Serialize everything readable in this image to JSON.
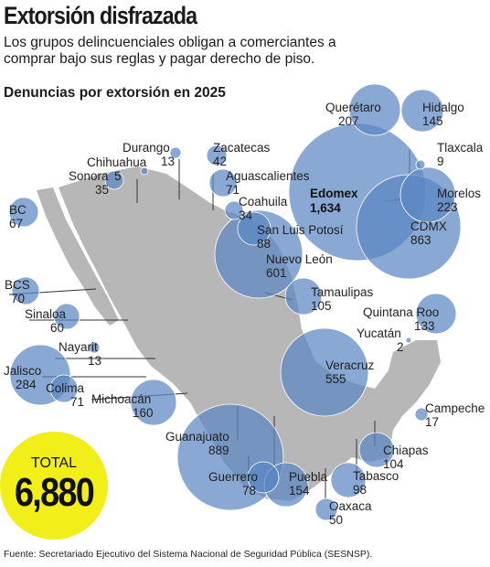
{
  "header": {
    "title": "Extorsión disfrazada",
    "subtitle": "Los grupos delincuenciales obligan a comerciantes a comprar bajo sus reglas y pagar derecho de piso.",
    "section": "Denuncias por extorsión en 2025"
  },
  "total": {
    "label": "TOTAL",
    "value": "6,880"
  },
  "source": "Fuente: Secretariado Ejecutivo del Sistema Nacional de Seguridad Pública (SESNSP).",
  "colors": {
    "bubble": "#5b86c4",
    "total": "#f2ee1a",
    "land": "#b7b7b7"
  },
  "states": [
    {
      "name": "Querétaro",
      "value": "207",
      "bold": false
    },
    {
      "name": "Hidalgo",
      "value": "145",
      "bold": false
    },
    {
      "name": "Durango",
      "value": "13",
      "bold": false
    },
    {
      "name": "Zacatecas",
      "value": "42",
      "bold": false
    },
    {
      "name": "Tlaxcala",
      "value": "9",
      "bold": false
    },
    {
      "name": "Chihuahua",
      "value": "5",
      "bold": false
    },
    {
      "name": "Sonora",
      "value": "35",
      "bold": false
    },
    {
      "name": "Aguascalientes",
      "value": "71",
      "bold": false
    },
    {
      "name": "Edomex",
      "value": "1,634",
      "bold": true
    },
    {
      "name": "Morelos",
      "value": "223",
      "bold": false
    },
    {
      "name": "Coahuila",
      "value": "34",
      "bold": false
    },
    {
      "name": "CDMX",
      "value": "863",
      "bold": false
    },
    {
      "name": "BC",
      "value": "67",
      "bold": false
    },
    {
      "name": "San Luis Potosí",
      "value": "88",
      "bold": false
    },
    {
      "name": "Nuevo León",
      "value": "601",
      "bold": false
    },
    {
      "name": "Tamaulipas",
      "value": "105",
      "bold": false
    },
    {
      "name": "BCS",
      "value": "70",
      "bold": false
    },
    {
      "name": "Sinaloa",
      "value": "60",
      "bold": false
    },
    {
      "name": "Quintana Roo",
      "value": "133",
      "bold": false
    },
    {
      "name": "Yucatán",
      "value": "2",
      "bold": false
    },
    {
      "name": "Nayarit",
      "value": "13",
      "bold": false
    },
    {
      "name": "Veracruz",
      "value": "555",
      "bold": false
    },
    {
      "name": "Jalisco",
      "value": "284",
      "bold": false
    },
    {
      "name": "Colima",
      "value": "71",
      "bold": false
    },
    {
      "name": "Michoacán",
      "value": "160",
      "bold": false
    },
    {
      "name": "Campeche",
      "value": "17",
      "bold": false
    },
    {
      "name": "Guanajuato",
      "value": "889",
      "bold": false
    },
    {
      "name": "Chiapas",
      "value": "104",
      "bold": false
    },
    {
      "name": "Tabasco",
      "value": "98",
      "bold": false
    },
    {
      "name": "Guerrero",
      "value": "78",
      "bold": false
    },
    {
      "name": "Puebla",
      "value": "154",
      "bold": false
    },
    {
      "name": "Oaxaca",
      "value": "50",
      "bold": false
    }
  ]
}
